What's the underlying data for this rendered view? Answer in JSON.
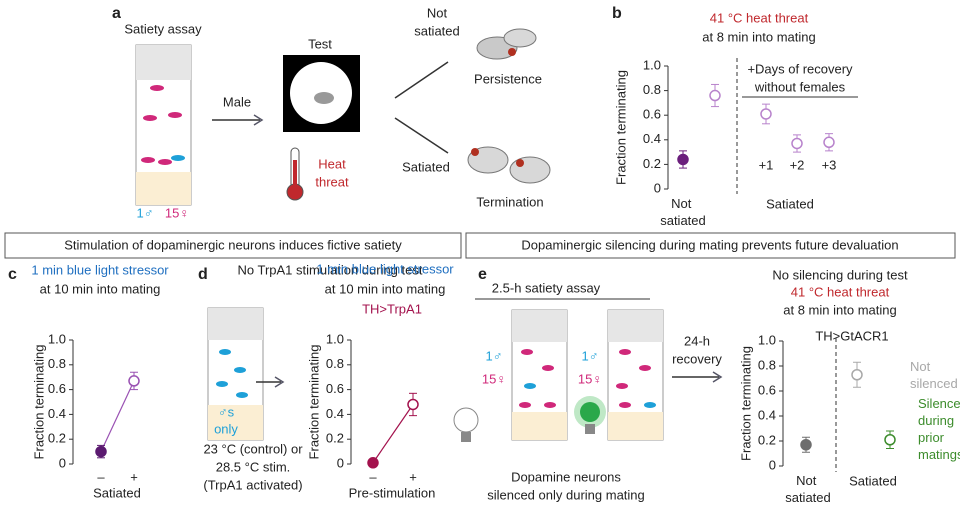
{
  "panel_letters": [
    "a",
    "b",
    "c",
    "d",
    "e"
  ],
  "panel_a": {
    "assay_title": "Satiety assay",
    "male_count": "1♂",
    "female_count": "15♀",
    "arrow_label": "Male",
    "test_title": "Test",
    "heat": [
      "Heat",
      "threat"
    ],
    "branch_top": [
      "Not",
      "satiated"
    ],
    "branch_bottom": "Satiated",
    "outcome_top": "Persistence",
    "outcome_bottom": "Termination"
  },
  "banners": [
    "Stimulation of dopaminergic neurons induces fictive satiety",
    "Dopaminergic silencing during mating prevents future devaluation"
  ],
  "panel_d_diagram": {
    "heading": "No TrpA1 stimulation during test",
    "tube_label": [
      "♂s",
      "only"
    ],
    "condition": [
      "23 °C (control) or",
      "28.5 °C stim.",
      "(TrpA1 activated)"
    ]
  },
  "panel_e_diagram": {
    "assay_title": "2.5-h satiety assay",
    "tube_labels": [
      {
        "male": "1♂",
        "female": "15♀"
      },
      {
        "male": "1♂",
        "female": "15♀"
      }
    ],
    "recovery": [
      "24-h",
      "recovery"
    ],
    "caption": [
      "Dopamine neurons",
      "silenced only during mating"
    ]
  },
  "chart_data": [
    {
      "type": "point",
      "title_lines": [
        {
          "text": "41 °C heat threat",
          "color": "#c0282d"
        },
        {
          "text": "at 8 min into mating",
          "color": "#222222"
        }
      ],
      "ylabel": "Fraction terminating",
      "categories": [
        "Not satiated",
        null,
        "+1",
        "+2",
        "+3"
      ],
      "values": [
        0.24,
        0.76,
        0.61,
        0.37,
        0.38
      ],
      "errors": [
        0.07,
        0.09,
        0.08,
        0.07,
        0.07
      ],
      "colors": [
        "#6b1f7c",
        "#b883cc",
        "#b883cc",
        "#b883cc",
        "#b883cc"
      ],
      "marker_fill": [
        "filled",
        "open",
        "open",
        "open",
        "open"
      ],
      "group_label": "Satiated",
      "annotation": [
        "+Days of recovery",
        "without females"
      ],
      "ylim": [
        0,
        1
      ],
      "yticks": [
        0,
        0.2,
        0.4,
        0.6,
        0.8,
        {
          "value": 1,
          "label": "1.0"
        }
      ]
    },
    {
      "type": "point",
      "title_lines": [
        {
          "text": "1 min blue light stressor",
          "color": "#1f6fc0"
        },
        {
          "text": "at 10 min into mating",
          "color": "#222222"
        }
      ],
      "ylabel": "Fraction terminating",
      "categories": [
        "–",
        "+"
      ],
      "values": [
        0.1,
        0.67
      ],
      "errors": [
        0.05,
        0.07
      ],
      "colors": [
        "#5b1a70",
        "#9a52b3"
      ],
      "marker_fill": [
        "filled",
        "open"
      ],
      "line_color": "#9a52b3",
      "xlabel": "Satiated",
      "ylim": [
        0,
        1
      ],
      "yticks": [
        0,
        0.2,
        0.4,
        0.6,
        0.8,
        {
          "value": 1,
          "label": "1.0"
        }
      ]
    },
    {
      "type": "point",
      "title_lines": [
        {
          "text": "1 min blue light stressor",
          "color": "#1f6fc0"
        },
        {
          "text": "at 10 min into mating",
          "color": "#222222"
        },
        {
          "text": "TH>TrpA1",
          "color": "#a3124d"
        }
      ],
      "ylabel": "Fraction terminating",
      "categories": [
        "–",
        "+"
      ],
      "values": [
        0.01,
        0.48
      ],
      "errors": [
        0.02,
        0.09
      ],
      "colors": [
        "#a3124d",
        "#a3124d"
      ],
      "marker_fill": [
        "filled",
        "open"
      ],
      "line_color": "#a3124d",
      "xlabel": "Pre-stimulation",
      "ylim": [
        0,
        1
      ],
      "yticks": [
        0,
        0.2,
        0.4,
        0.6,
        0.8,
        {
          "value": 1,
          "label": "1.0"
        }
      ]
    },
    {
      "type": "point",
      "title_lines": [
        {
          "text": "No silencing during test",
          "color": "#222222"
        },
        {
          "text": "41 °C heat threat",
          "color": "#c0282d"
        },
        {
          "text": "at 8 min into mating",
          "color": "#222222"
        },
        {
          "text": "TH>GtACR1",
          "color": "#222222"
        }
      ],
      "ylabel": "Fraction terminating",
      "categories": [
        "Not satiated",
        "Not silenced",
        "Silenced during prior matings"
      ],
      "category_colors": [
        "#222222",
        "#a8a8a8",
        "#3c8c2c"
      ],
      "values": [
        0.17,
        0.73,
        0.21
      ],
      "errors": [
        0.06,
        0.1,
        0.07
      ],
      "colors": [
        "#6e6e6e",
        "#a8a8a8",
        "#3c8c2c"
      ],
      "marker_fill": [
        "filled",
        "open",
        "open"
      ],
      "group_label": "Satiated",
      "ylim": [
        0,
        1
      ],
      "yticks": [
        0,
        0.2,
        0.4,
        0.6,
        0.8,
        {
          "value": 1,
          "label": "1.0"
        }
      ]
    }
  ]
}
